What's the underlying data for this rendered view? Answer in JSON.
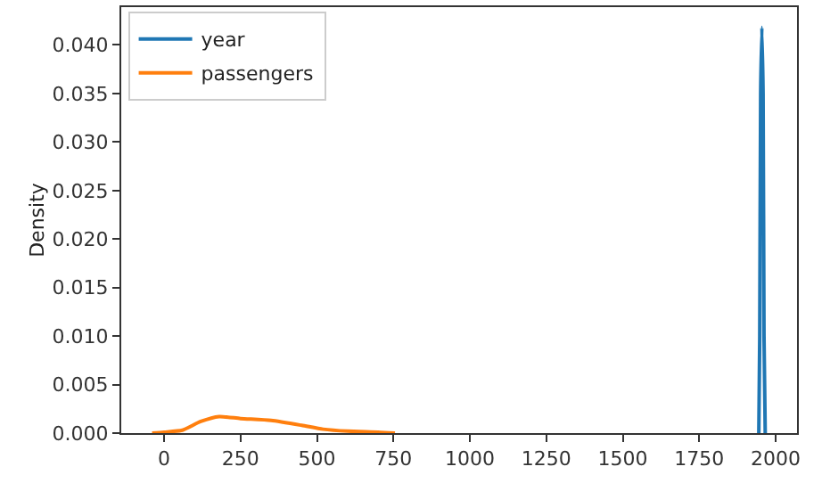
{
  "chart_data": {
    "type": "line",
    "ylabel": "Density",
    "xlim": [
      -140,
      2070
    ],
    "ylim": [
      0,
      0.0439
    ],
    "xticks": [
      0,
      250,
      500,
      750,
      1000,
      1250,
      1500,
      1750,
      2000
    ],
    "yticks": [
      {
        "value": 0,
        "label": "0.000"
      },
      {
        "value": 0.005,
        "label": "0.005"
      },
      {
        "value": 0.01,
        "label": "0.010"
      },
      {
        "value": 0.015,
        "label": "0.015"
      },
      {
        "value": 0.02,
        "label": "0.020"
      },
      {
        "value": 0.025,
        "label": "0.025"
      },
      {
        "value": 0.03,
        "label": "0.030"
      },
      {
        "value": 0.035,
        "label": "0.035"
      },
      {
        "value": 0.04,
        "label": "0.040"
      }
    ],
    "grid": false,
    "legend": "top left",
    "marker": "none",
    "line_style": "solid",
    "series": [
      {
        "name": "year",
        "color": "#1f77b4",
        "x": [
          1945,
          1948,
          1951,
          1955,
          1959,
          1962,
          1966
        ],
        "values": [
          0,
          0.01,
          0.035,
          0.0418,
          0.035,
          0.01,
          0
        ]
      },
      {
        "name": "passengers",
        "color": "#ff7f0e",
        "x": [
          -39,
          0,
          60,
          120,
          180,
          250,
          350,
          450,
          520,
          600,
          700,
          755
        ],
        "values": [
          0,
          0.0001,
          0.0003,
          0.0012,
          0.0017,
          0.0015,
          0.0013,
          0.0008,
          0.0004,
          0.0002,
          0.0001,
          0
        ]
      }
    ]
  }
}
